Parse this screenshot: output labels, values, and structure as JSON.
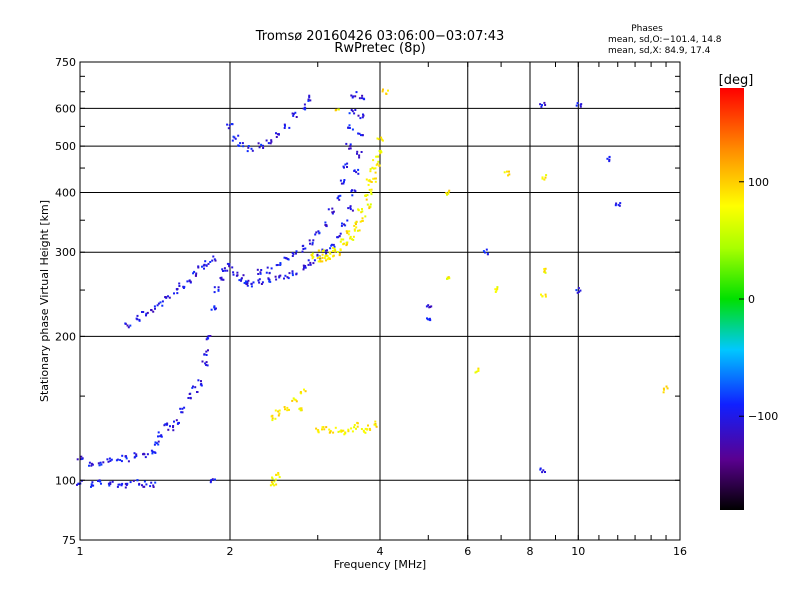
{
  "chart_data": {
    "type": "scatter",
    "title": "Tromsø 20160426 03:06:00−03:07:43",
    "subtitle": "RwPretec (8p)",
    "xlabel": "Frequency [MHz]",
    "ylabel": "Stationary phase Virtual Height [km]",
    "xscale": "log",
    "yscale": "log",
    "xlim": [
      1,
      16
    ],
    "ylim": [
      75,
      750
    ],
    "x_ticks": [
      1,
      2,
      4,
      6,
      8,
      10,
      16
    ],
    "x_tick_labels": [
      "1",
      "2",
      "4",
      "6",
      "8",
      "10",
      "16"
    ],
    "y_ticks": [
      75,
      100,
      200,
      300,
      400,
      500,
      600,
      750
    ],
    "y_tick_labels": [
      "75",
      "100",
      "200",
      "300",
      "400",
      "500",
      "600",
      "750"
    ],
    "grid": true,
    "stats": {
      "heading": "Phases",
      "line1": "mean, sd,O:−101.4, 14.8",
      "line2": "mean, sd,X:  84.9, 17.4"
    },
    "colorbar": {
      "label": "[deg]",
      "range": [
        -180,
        180
      ],
      "ticks": [
        100,
        0,
        -100
      ],
      "tick_labels": [
        "100",
        "0",
        "−100"
      ]
    },
    "series": [
      {
        "mode": "O",
        "phase_deg": -101,
        "points": [
          [
            1.0,
            99
          ],
          [
            1.05,
            98
          ],
          [
            1.1,
            99
          ],
          [
            1.15,
            98
          ],
          [
            1.2,
            98
          ],
          [
            1.25,
            98
          ],
          [
            1.3,
            99
          ],
          [
            1.35,
            98
          ],
          [
            1.4,
            98
          ],
          [
            1.0,
            112
          ],
          [
            1.05,
            108
          ],
          [
            1.1,
            109
          ],
          [
            1.15,
            110
          ],
          [
            1.2,
            111
          ],
          [
            1.25,
            111
          ],
          [
            1.3,
            113
          ],
          [
            1.35,
            112
          ],
          [
            1.4,
            115
          ],
          [
            1.42,
            120
          ],
          [
            1.45,
            125
          ],
          [
            1.48,
            130
          ],
          [
            1.52,
            128
          ],
          [
            1.56,
            132
          ],
          [
            1.6,
            140
          ],
          [
            1.65,
            150
          ],
          [
            1.7,
            155
          ],
          [
            1.75,
            160
          ],
          [
            1.78,
            175
          ],
          [
            1.8,
            185
          ],
          [
            1.82,
            200
          ],
          [
            1.85,
            230
          ],
          [
            1.88,
            250
          ],
          [
            1.92,
            265
          ],
          [
            1.95,
            275
          ],
          [
            2.0,
            280
          ],
          [
            2.05,
            270
          ],
          [
            2.1,
            265
          ],
          [
            2.15,
            260
          ],
          [
            2.2,
            258
          ],
          [
            2.3,
            260
          ],
          [
            2.4,
            263
          ],
          [
            2.5,
            265
          ],
          [
            2.6,
            268
          ],
          [
            2.7,
            272
          ],
          [
            2.8,
            278
          ],
          [
            2.9,
            285
          ],
          [
            3.0,
            292
          ],
          [
            3.1,
            300
          ],
          [
            3.2,
            310
          ],
          [
            3.3,
            325
          ],
          [
            3.4,
            345
          ],
          [
            3.5,
            370
          ],
          [
            3.55,
            400
          ],
          [
            3.6,
            440
          ],
          [
            3.63,
            480
          ],
          [
            3.65,
            530
          ],
          [
            3.67,
            580
          ],
          [
            3.68,
            630
          ],
          [
            1.25,
            210
          ],
          [
            1.3,
            218
          ],
          [
            1.35,
            222
          ],
          [
            1.4,
            228
          ],
          [
            1.45,
            235
          ],
          [
            1.5,
            240
          ],
          [
            1.55,
            248
          ],
          [
            1.6,
            255
          ],
          [
            1.65,
            262
          ],
          [
            1.7,
            270
          ],
          [
            1.75,
            278
          ],
          [
            1.8,
            285
          ],
          [
            1.85,
            290
          ],
          [
            2.15,
            260
          ],
          [
            2.3,
            272
          ],
          [
            2.4,
            275
          ],
          [
            2.5,
            282
          ],
          [
            2.6,
            290
          ],
          [
            2.7,
            298
          ],
          [
            2.8,
            305
          ],
          [
            2.9,
            315
          ],
          [
            3.0,
            330
          ],
          [
            3.1,
            345
          ],
          [
            3.2,
            365
          ],
          [
            3.3,
            390
          ],
          [
            3.35,
            420
          ],
          [
            3.4,
            455
          ],
          [
            3.45,
            500
          ],
          [
            3.5,
            545
          ],
          [
            3.52,
            590
          ],
          [
            3.55,
            640
          ],
          [
            2.0,
            550
          ],
          [
            2.05,
            520
          ],
          [
            2.1,
            505
          ],
          [
            2.2,
            495
          ],
          [
            2.3,
            500
          ],
          [
            2.4,
            510
          ],
          [
            2.5,
            525
          ],
          [
            2.6,
            550
          ],
          [
            2.7,
            580
          ],
          [
            2.8,
            605
          ],
          [
            2.9,
            630
          ],
          [
            5.0,
            230
          ],
          [
            5.0,
            215
          ],
          [
            6.5,
            300
          ],
          [
            8.5,
            612
          ],
          [
            8.5,
            105
          ],
          [
            10.0,
            250
          ],
          [
            10.0,
            610
          ],
          [
            11.5,
            470
          ],
          [
            12.0,
            380
          ],
          [
            1.85,
            100
          ]
        ]
      },
      {
        "mode": "X",
        "phase_deg": 85,
        "points": [
          [
            2.9,
            295
          ],
          [
            3.0,
            290
          ],
          [
            3.1,
            288
          ],
          [
            3.2,
            292
          ],
          [
            3.3,
            300
          ],
          [
            3.4,
            310
          ],
          [
            3.5,
            322
          ],
          [
            3.6,
            335
          ],
          [
            3.7,
            352
          ],
          [
            3.8,
            375
          ],
          [
            3.85,
            400
          ],
          [
            3.9,
            425
          ],
          [
            3.95,
            455
          ],
          [
            4.0,
            490
          ],
          [
            4.0,
            520
          ],
          [
            3.05,
            300
          ],
          [
            3.15,
            298
          ],
          [
            3.25,
            305
          ],
          [
            3.35,
            315
          ],
          [
            3.45,
            330
          ],
          [
            3.55,
            345
          ],
          [
            3.65,
            365
          ],
          [
            3.75,
            390
          ],
          [
            3.8,
            420
          ],
          [
            3.87,
            445
          ],
          [
            3.92,
            470
          ],
          [
            2.45,
            135
          ],
          [
            2.5,
            138
          ],
          [
            2.6,
            142
          ],
          [
            2.7,
            148
          ],
          [
            2.8,
            153
          ],
          [
            2.75,
            140
          ],
          [
            2.45,
            100
          ],
          [
            2.5,
            103
          ],
          [
            2.45,
            97
          ],
          [
            3.0,
            127
          ],
          [
            3.1,
            128
          ],
          [
            3.2,
            126
          ],
          [
            3.3,
            127
          ],
          [
            3.4,
            126
          ],
          [
            3.5,
            128
          ],
          [
            3.6,
            130
          ],
          [
            3.7,
            127
          ],
          [
            3.8,
            129
          ],
          [
            3.9,
            131
          ],
          [
            4.1,
            650
          ],
          [
            5.5,
            400
          ],
          [
            7.2,
            440
          ],
          [
            8.5,
            430
          ],
          [
            8.5,
            275
          ],
          [
            8.5,
            245
          ],
          [
            15,
            155
          ],
          [
            6.8,
            250
          ],
          [
            5.5,
            265
          ],
          [
            6.3,
            170
          ],
          [
            3.3,
            595
          ]
        ]
      }
    ]
  }
}
